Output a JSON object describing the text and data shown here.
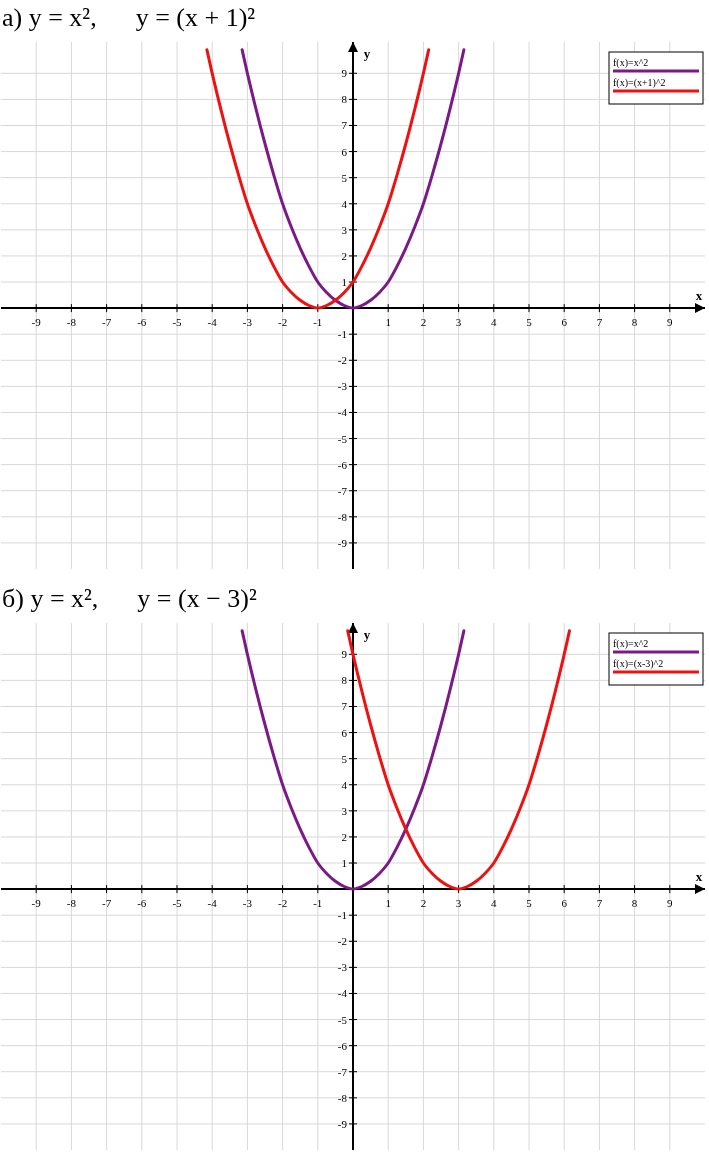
{
  "chart_data": [
    {
      "type": "line",
      "title": "а) y = x²,      y = (x + 1)²",
      "xlabel": "x",
      "ylabel": "y",
      "xlim": [
        -10,
        10
      ],
      "ylim": [
        -10,
        10.2
      ],
      "xticks": [
        -9,
        -8,
        -7,
        -6,
        -5,
        -4,
        -3,
        -2,
        -1,
        1,
        2,
        3,
        4,
        5,
        6,
        7,
        8,
        9
      ],
      "yticks": [
        -9,
        -8,
        -7,
        -6,
        -5,
        -4,
        -3,
        -2,
        -1,
        1,
        2,
        3,
        4,
        5,
        6,
        7,
        8,
        9
      ],
      "grid": true,
      "legend": "top right",
      "series": [
        {
          "name": "f(x)=x^2",
          "color": "#7b1a86",
          "x": [
            -3.15,
            -3,
            -2.75,
            -2.5,
            -2.25,
            -2,
            -1.75,
            -1.5,
            -1.25,
            -1,
            -0.75,
            -0.5,
            -0.25,
            0,
            0.25,
            0.5,
            0.75,
            1,
            1.25,
            1.5,
            1.75,
            2,
            2.25,
            2.5,
            2.75,
            3,
            3.15
          ],
          "values": [
            9.9,
            9,
            7.6,
            6.3,
            5.1,
            4,
            3.1,
            2.3,
            1.6,
            1,
            0.6,
            0.3,
            0.1,
            0,
            0.1,
            0.3,
            0.6,
            1,
            1.6,
            2.3,
            3.1,
            4,
            5.1,
            6.3,
            7.6,
            9,
            9.9
          ]
        },
        {
          "name": "f(x)=(x+1)^2",
          "color": "#ee1111",
          "x": [
            -4.15,
            -4,
            -3.75,
            -3.5,
            -3.25,
            -3,
            -2.75,
            -2.5,
            -2.25,
            -2,
            -1.75,
            -1.5,
            -1.25,
            -1,
            -0.75,
            -0.5,
            -0.25,
            0,
            0.25,
            0.5,
            0.75,
            1,
            1.25,
            1.5,
            1.75,
            2,
            2.15
          ],
          "values": [
            9.9,
            9,
            7.6,
            6.3,
            5.1,
            4,
            3.1,
            2.3,
            1.6,
            1,
            0.6,
            0.3,
            0.1,
            0,
            0.1,
            0.3,
            0.6,
            1,
            1.6,
            2.3,
            3.1,
            4,
            5.1,
            6.3,
            7.6,
            9,
            9.9
          ]
        }
      ]
    },
    {
      "type": "line",
      "title": "б) y = x²,      y = (x − 3)²",
      "xlabel": "x",
      "ylabel": "y",
      "xlim": [
        -10,
        10
      ],
      "ylim": [
        -10,
        10.2
      ],
      "xticks": [
        -9,
        -8,
        -7,
        -6,
        -5,
        -4,
        -3,
        -2,
        -1,
        1,
        2,
        3,
        4,
        5,
        6,
        7,
        8,
        9
      ],
      "yticks": [
        -9,
        -8,
        -7,
        -6,
        -5,
        -4,
        -3,
        -2,
        -1,
        1,
        2,
        3,
        4,
        5,
        6,
        7,
        8,
        9
      ],
      "grid": true,
      "legend": "top right",
      "series": [
        {
          "name": "f(x)=x^2",
          "color": "#7b1a86",
          "x": [
            -3.15,
            -3,
            -2.75,
            -2.5,
            -2.25,
            -2,
            -1.75,
            -1.5,
            -1.25,
            -1,
            -0.75,
            -0.5,
            -0.25,
            0,
            0.25,
            0.5,
            0.75,
            1,
            1.25,
            1.5,
            1.75,
            2,
            2.25,
            2.5,
            2.75,
            3,
            3.15
          ],
          "values": [
            9.9,
            9,
            7.6,
            6.3,
            5.1,
            4,
            3.1,
            2.3,
            1.6,
            1,
            0.6,
            0.3,
            0.1,
            0,
            0.1,
            0.3,
            0.6,
            1,
            1.6,
            2.3,
            3.1,
            4,
            5.1,
            6.3,
            7.6,
            9,
            9.9
          ]
        },
        {
          "name": "f(x)=(x-3)^2",
          "color": "#ee1111",
          "x": [
            -0.15,
            0,
            0.25,
            0.5,
            0.75,
            1,
            1.25,
            1.5,
            1.75,
            2,
            2.25,
            2.5,
            2.75,
            3,
            3.25,
            3.5,
            3.75,
            4,
            4.25,
            4.5,
            4.75,
            5,
            5.25,
            5.5,
            5.75,
            6,
            6.15
          ],
          "values": [
            9.9,
            9,
            7.6,
            6.3,
            5.1,
            4,
            3.1,
            2.3,
            1.6,
            1,
            0.6,
            0.3,
            0.1,
            0,
            0.1,
            0.3,
            0.6,
            1,
            1.6,
            2.3,
            3.1,
            4,
            5.1,
            6.3,
            7.6,
            9,
            9.9
          ]
        }
      ]
    }
  ]
}
